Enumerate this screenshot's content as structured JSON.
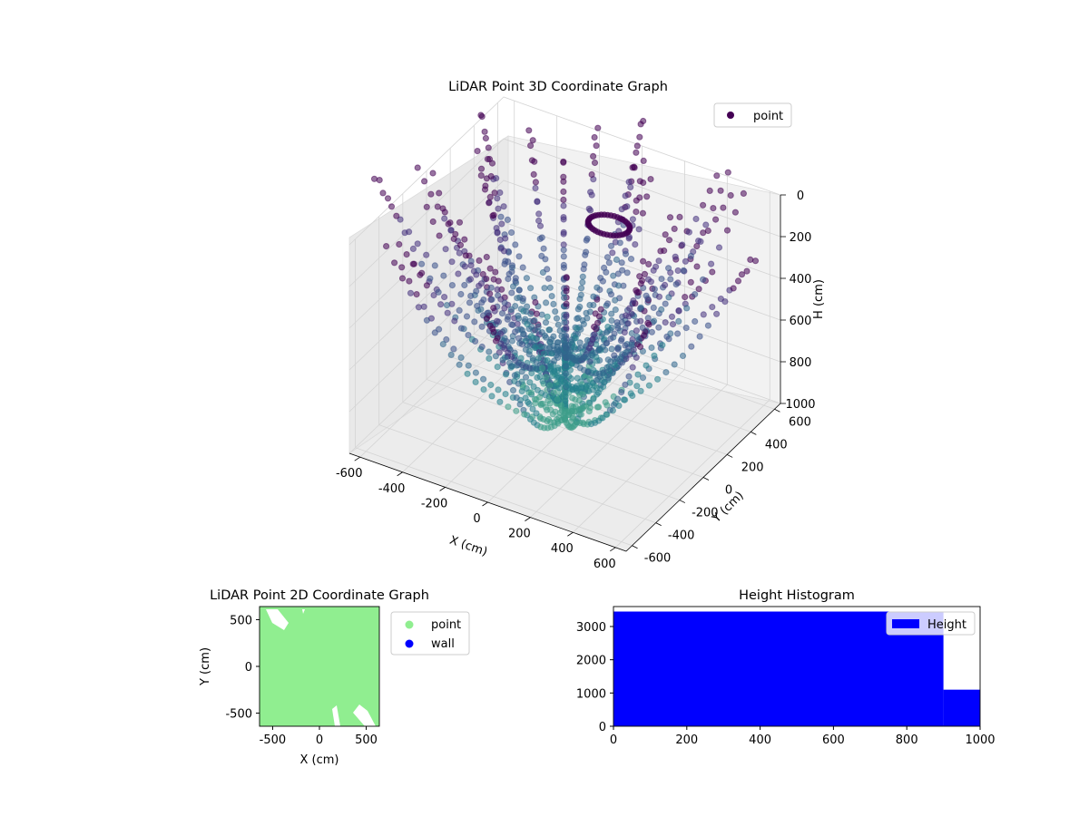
{
  "chart_data": [
    {
      "type": "scatter3d",
      "title": "LiDAR Point 3D Coordinate Graph",
      "xlabel": "X (cm)",
      "ylabel": "Y (cm)",
      "zlabel": "H (cm)",
      "xticks": [
        "-600",
        "-400",
        "-200",
        "0",
        "200",
        "400",
        "600"
      ],
      "yticks": [
        "-600",
        "-400",
        "-200",
        "0",
        "200",
        "400",
        "600"
      ],
      "zticks": [
        "0",
        "200",
        "400",
        "600",
        "800",
        "1000"
      ],
      "xlim": [
        -650,
        650
      ],
      "ylim": [
        -650,
        650
      ],
      "zlim": [
        0,
        1000
      ],
      "z_inverted": true,
      "grid": true,
      "legend": {
        "position": "top-right",
        "entries": [
          {
            "label": "point",
            "color": "#440154"
          }
        ]
      },
      "colormap": "viridis",
      "series": [
        {
          "name": "point",
          "description_points": "radial arcs of LiDAR samples dipping from rim toward the center"
        }
      ]
    },
    {
      "type": "scatter",
      "title": "LiDAR Point 2D Coordinate Graph",
      "xlabel": "X (cm)",
      "ylabel": "Y (cm)",
      "xticks": [
        "-500",
        "0",
        "500"
      ],
      "yticks": [
        "-500",
        "0",
        "500"
      ],
      "xlim": [
        -640,
        640
      ],
      "ylim": [
        -640,
        640
      ],
      "legend": {
        "position": "right-outside",
        "entries": [
          {
            "label": "point",
            "color": "#90ee90"
          },
          {
            "label": "wall",
            "color": "#0000ff"
          }
        ]
      }
    },
    {
      "type": "bar",
      "title": "Height Histogram",
      "xticks": [
        "0",
        "200",
        "400",
        "600",
        "800",
        "1000"
      ],
      "yticks": [
        "0",
        "1000",
        "2000",
        "3000"
      ],
      "xlim": [
        0,
        1000
      ],
      "ylim": [
        0,
        3600
      ],
      "bins": [
        {
          "from": 0,
          "to": 900,
          "count": 3450
        },
        {
          "from": 900,
          "to": 1000,
          "count": 1100
        }
      ],
      "color": "#0000ff",
      "legend": {
        "position": "top-right",
        "entries": [
          {
            "label": "Height",
            "color": "#0000ff"
          }
        ]
      }
    }
  ]
}
